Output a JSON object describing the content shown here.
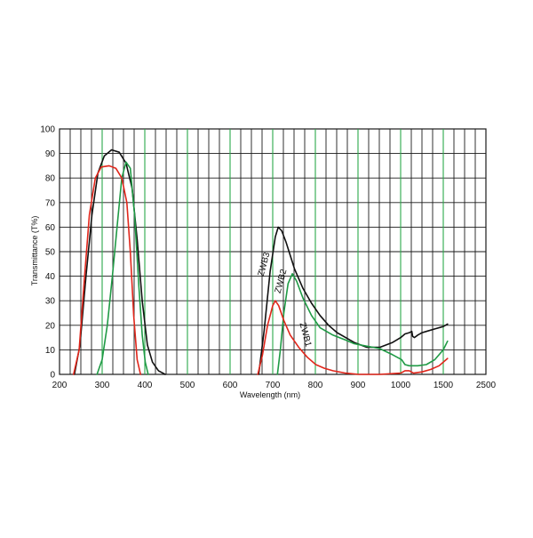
{
  "chart_data": {
    "type": "line",
    "title": "",
    "xlabel": "Wavelength (nm)",
    "ylabel": "Transmittance (T%)",
    "ylim": [
      0,
      100
    ],
    "grid": true,
    "x_tick_labels": [
      "200",
      "300",
      "400",
      "500",
      "600",
      "700",
      "800",
      "900",
      "1000",
      "1500",
      "2500"
    ],
    "y_tick_labels": [
      "0",
      "10",
      "20",
      "30",
      "40",
      "50",
      "60",
      "70",
      "80",
      "90",
      "100"
    ],
    "colors": {
      "ZWB1": "#e0261b",
      "ZWB2": "#1f9a45",
      "ZWB3": "#111111",
      "grid_black": "#1a1a1a",
      "grid_green": "#2aa84a"
    },
    "series": [
      {
        "name": "ZWB3",
        "color": "#111111",
        "points": [
          [
            235,
            0
          ],
          [
            248,
            12
          ],
          [
            262,
            40
          ],
          [
            276,
            65
          ],
          [
            290,
            82
          ],
          [
            305,
            89
          ],
          [
            322,
            91.5
          ],
          [
            340,
            90.5
          ],
          [
            356,
            86
          ],
          [
            370,
            76
          ],
          [
            382,
            55
          ],
          [
            394,
            30
          ],
          [
            406,
            12
          ],
          [
            418,
            5
          ],
          [
            432,
            1.5
          ],
          [
            448,
            0
          ],
          [
            667,
            0
          ],
          [
            680,
            18
          ],
          [
            694,
            42
          ],
          [
            706,
            56
          ],
          [
            713,
            60
          ],
          [
            721,
            58.5
          ],
          [
            731,
            54
          ],
          [
            751,
            43
          ],
          [
            771,
            35
          ],
          [
            791,
            29
          ],
          [
            811,
            24
          ],
          [
            831,
            20
          ],
          [
            851,
            17
          ],
          [
            891,
            13
          ],
          [
            921,
            11
          ],
          [
            951,
            11
          ],
          [
            981,
            13
          ],
          [
            1001,
            15
          ],
          [
            1051,
            16.5
          ],
          [
            1101,
            17
          ],
          [
            1131,
            17.5
          ],
          [
            1141,
            15.5
          ],
          [
            1161,
            15
          ],
          [
            1201,
            16
          ],
          [
            1251,
            17
          ],
          [
            1301,
            17.5
          ],
          [
            1401,
            18.5
          ],
          [
            1501,
            19.5
          ],
          [
            1601,
            20.5
          ]
        ]
      },
      {
        "name": "ZWB2",
        "color": "#1f9a45",
        "points": [
          [
            288,
            0
          ],
          [
            300,
            6
          ],
          [
            312,
            20
          ],
          [
            324,
            40
          ],
          [
            336,
            62
          ],
          [
            346,
            80
          ],
          [
            356,
            86.5
          ],
          [
            366,
            84
          ],
          [
            376,
            65
          ],
          [
            386,
            36
          ],
          [
            394,
            16
          ],
          [
            401,
            5
          ],
          [
            408,
            0
          ],
          [
            711,
            0
          ],
          [
            718,
            10
          ],
          [
            726,
            25
          ],
          [
            736,
            37
          ],
          [
            746,
            41
          ],
          [
            756,
            38
          ],
          [
            771,
            31
          ],
          [
            791,
            24
          ],
          [
            811,
            19
          ],
          [
            841,
            16
          ],
          [
            871,
            14
          ],
          [
            891,
            12.5
          ],
          [
            921,
            11.5
          ],
          [
            951,
            10.5
          ],
          [
            981,
            8
          ],
          [
            1011,
            6
          ],
          [
            1051,
            4
          ],
          [
            1101,
            3.5
          ],
          [
            1201,
            3.5
          ],
          [
            1301,
            4
          ],
          [
            1401,
            6
          ],
          [
            1501,
            10
          ],
          [
            1601,
            13.5
          ]
        ]
      },
      {
        "name": "ZWB1",
        "color": "#e0261b",
        "points": [
          [
            233,
            0
          ],
          [
            246,
            10
          ],
          [
            258,
            38
          ],
          [
            270,
            65
          ],
          [
            284,
            80
          ],
          [
            298,
            84.5
          ],
          [
            316,
            85
          ],
          [
            332,
            84
          ],
          [
            346,
            80
          ],
          [
            358,
            70
          ],
          [
            366,
            50
          ],
          [
            374,
            24
          ],
          [
            382,
            6
          ],
          [
            390,
            0
          ],
          [
            665,
            0
          ],
          [
            676,
            8
          ],
          [
            688,
            20
          ],
          [
            700,
            28
          ],
          [
            706,
            30
          ],
          [
            714,
            28
          ],
          [
            726,
            22
          ],
          [
            741,
            16
          ],
          [
            761,
            11
          ],
          [
            781,
            7
          ],
          [
            801,
            4
          ],
          [
            821,
            2.5
          ],
          [
            841,
            1.5
          ],
          [
            871,
            0.5
          ],
          [
            901,
            0
          ],
          [
            951,
            0
          ],
          [
            1001,
            0.5
          ],
          [
            1051,
            1.5
          ],
          [
            1101,
            1.5
          ],
          [
            1151,
            0.5
          ],
          [
            1251,
            1
          ],
          [
            1351,
            2
          ],
          [
            1451,
            3.5
          ],
          [
            1601,
            6.5
          ]
        ]
      }
    ],
    "curve_labels": [
      {
        "text": "ZWB3",
        "series": "ZWB3"
      },
      {
        "text": "ZWB2",
        "series": "ZWB2"
      },
      {
        "text": "ZWB1",
        "series": "ZWB1"
      }
    ]
  }
}
